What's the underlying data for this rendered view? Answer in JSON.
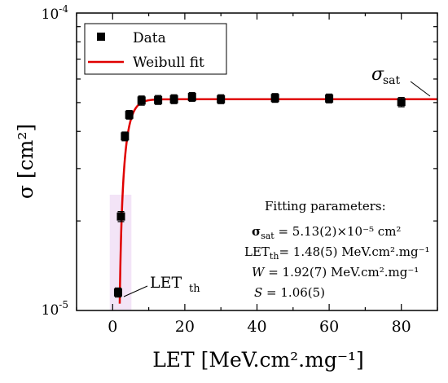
{
  "chart_data": {
    "type": "scatter",
    "title": "",
    "xlabel": "LET [MeV.cm².mg⁻¹]",
    "ylabel": "σ [cm²]",
    "x_axis": {
      "range": [
        -10,
        90
      ],
      "ticks": [
        0,
        20,
        40,
        60,
        80
      ],
      "tick_labels": [
        "0",
        "20",
        "40",
        "60",
        "80"
      ]
    },
    "y_axis": {
      "scale": "log",
      "range": [
        1e-05,
        0.0001
      ],
      "tick_labels": {
        "bottom": "10",
        "bottom_exp": "-5",
        "top": "10",
        "top_exp": "-4"
      }
    },
    "legend": {
      "placement": "top-left",
      "entries": [
        {
          "label": "Data",
          "marker": "square",
          "color": "#000000"
        },
        {
          "label": "Weibull fit",
          "marker": "line",
          "color": "#e00000"
        }
      ]
    },
    "series": [
      {
        "name": "Data",
        "x": [
          1.5,
          2.3,
          3.4,
          4.6,
          8,
          12.6,
          17,
          22,
          30,
          45,
          60,
          80
        ],
        "y": [
          1.15e-05,
          2.07e-05,
          3.85e-05,
          4.55e-05,
          5.08e-05,
          5.1e-05,
          5.13e-05,
          5.22e-05,
          5.13e-05,
          5.18e-05,
          5.16e-05,
          5.02e-05
        ],
        "err_low": [
          1.11e-05,
          1.99e-05,
          3.72e-05,
          4.4e-05,
          4.9e-05,
          4.93e-05,
          4.96e-05,
          5.05e-05,
          4.96e-05,
          5.01e-05,
          4.99e-05,
          4.84e-05
        ],
        "err_high": [
          1.19e-05,
          2.15e-05,
          3.98e-05,
          4.7e-05,
          5.26e-05,
          5.28e-05,
          5.31e-05,
          5.4e-05,
          5.31e-05,
          5.36e-05,
          5.34e-05,
          5.2e-05
        ]
      },
      {
        "name": "Weibull fit",
        "model": "weibull",
        "params": {
          "sigma_sat": 5.13e-05,
          "let_th": 1.48,
          "W": 1.92,
          "S": 1.06
        }
      }
    ],
    "annotations": {
      "sigma_sat_label": "σ",
      "sigma_sat_sub": "sat",
      "let_th_label": "LET",
      "let_th_sub": "th",
      "params_title": "Fitting parameters:",
      "param_sigma_sym": "σ",
      "param_sigma_sub": "sat",
      "param_sigma_val": " = 5.13(2)×10⁻⁵ cm²",
      "param_let_sym": "LET",
      "param_let_sub": "th",
      "param_let_val": "= 1.48(5) MeV.cm².mg⁻¹",
      "param_w_sym": "W",
      "param_w_val": " = 1.92(7) MeV.cm².mg⁻¹",
      "param_s_sym": "S",
      "param_s_val": " = 1.06(5)"
    },
    "colors": {
      "fit": "#e00000",
      "threshold_band": "#f3e4f7",
      "markers": "#000000"
    }
  }
}
